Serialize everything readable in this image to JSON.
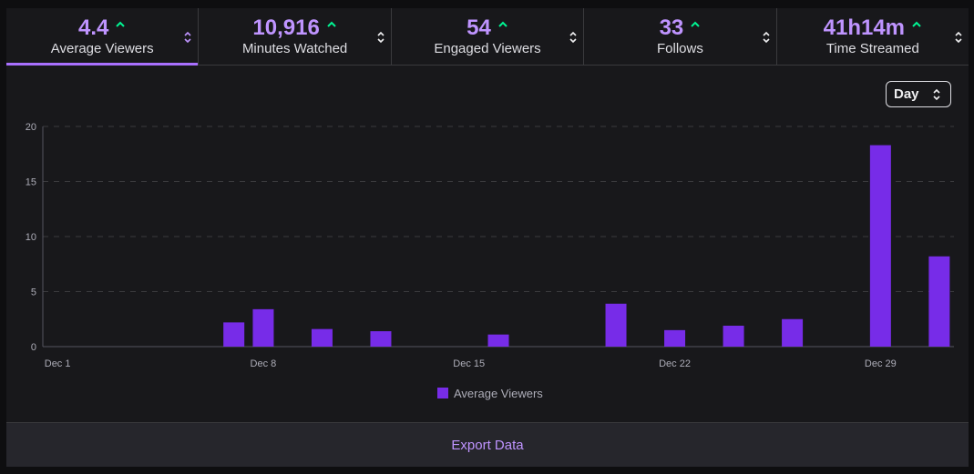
{
  "stats": [
    {
      "value": "4.4",
      "label": "Average Viewers",
      "active": true
    },
    {
      "value": "10,916",
      "label": "Minutes Watched",
      "active": false
    },
    {
      "value": "54",
      "label": "Engaged Viewers",
      "active": false
    },
    {
      "value": "33",
      "label": "Follows",
      "active": false
    },
    {
      "value": "41h14m",
      "label": "Time Streamed",
      "active": false
    }
  ],
  "icons": {
    "trend": "trend-up-caret-icon",
    "sort": "sort-arrows-icon"
  },
  "colors": {
    "accent": "#bf94ff",
    "bar": "#772ce8",
    "trend": "#00f593",
    "grid": "#3a3a3d"
  },
  "interval_select": {
    "value": "Day"
  },
  "chart_data": {
    "type": "bar",
    "x_ticks": [
      "Dec 1",
      "Dec 8",
      "Dec 15",
      "Dec 22",
      "Dec 29"
    ],
    "categories": [
      "Dec 1",
      "Dec 2",
      "Dec 3",
      "Dec 4",
      "Dec 5",
      "Dec 6",
      "Dec 7",
      "Dec 8",
      "Dec 9",
      "Dec 10",
      "Dec 11",
      "Dec 12",
      "Dec 13",
      "Dec 14",
      "Dec 15",
      "Dec 16",
      "Dec 17",
      "Dec 18",
      "Dec 19",
      "Dec 20",
      "Dec 21",
      "Dec 22",
      "Dec 23",
      "Dec 24",
      "Dec 25",
      "Dec 26",
      "Dec 27",
      "Dec 28",
      "Dec 29",
      "Dec 30",
      "Dec 31"
    ],
    "series": [
      {
        "name": "Average Viewers",
        "values": [
          0,
          0,
          0,
          0,
          0,
          0,
          2.2,
          3.4,
          0,
          1.6,
          0,
          1.4,
          0,
          0,
          0,
          1.1,
          0,
          0,
          0,
          3.9,
          0,
          1.5,
          0,
          1.9,
          0,
          2.5,
          0,
          0,
          18.3,
          0,
          8.2
        ]
      }
    ],
    "ylim": [
      0,
      20
    ],
    "y_ticks": [
      0,
      5,
      10,
      15,
      20
    ],
    "grid": true,
    "legend_position": "bottom-center"
  },
  "footer": {
    "export_label": "Export Data"
  }
}
